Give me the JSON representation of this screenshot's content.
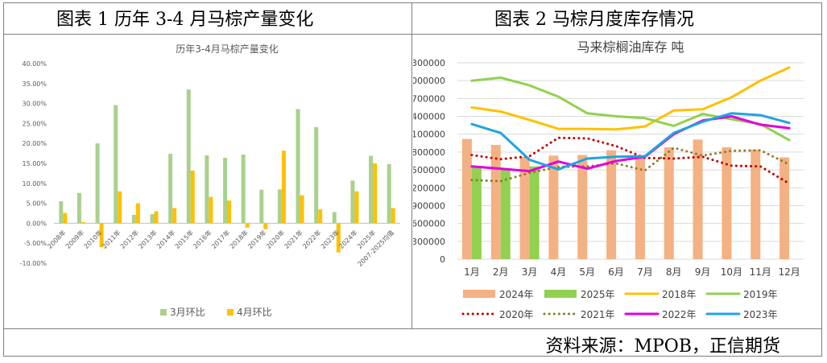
{
  "captions": {
    "left": "图表 1 历年 3-4 月马棕产量变化",
    "right": "图表 2   马棕月度库存情况"
  },
  "source": "资料来源：MPOB，正信期货",
  "chart_data": [
    {
      "type": "bar",
      "title": "历年3-4月马棕产量变化",
      "categories": [
        "2008年",
        "2009年",
        "2010年",
        "2011年",
        "2012年",
        "2013年",
        "2014年",
        "2015年",
        "2016年",
        "2017年",
        "2018年",
        "2019年",
        "2020年",
        "2021年",
        "2022年",
        "2023年",
        "2024年",
        "2025年",
        "2007-2025均值"
      ],
      "ylim": [
        -10,
        40
      ],
      "yticks": [
        "-10.00%",
        "-5.00%",
        "0.00%",
        "5.00%",
        "10.00%",
        "15.00%",
        "20.00%",
        "25.00%",
        "30.00%",
        "35.00%",
        "40.00%"
      ],
      "series": [
        {
          "name": "3月环比",
          "color": "#a9d18e",
          "values": [
            5.5,
            7.6,
            20.0,
            29.6,
            2.1,
            2.3,
            17.4,
            33.5,
            17.0,
            16.4,
            17.2,
            8.4,
            8.5,
            28.6,
            24.1,
            2.8,
            10.7,
            16.9,
            14.8
          ]
        },
        {
          "name": "4月环比",
          "color": "#ffc000",
          "values": [
            2.6,
            0.3,
            -6.0,
            8.0,
            5.0,
            3.0,
            3.8,
            13.2,
            6.6,
            5.7,
            -1.1,
            -1.5,
            18.2,
            7.0,
            3.5,
            -7.3,
            8.0,
            15.0,
            3.8
          ]
        }
      ],
      "grid": false,
      "legend": "bottom"
    },
    {
      "type": "bar+line",
      "title": "马来棕榈油库存    吨",
      "categories": [
        "1月",
        "2月",
        "3月",
        "4月",
        "5月",
        "6月",
        "7月",
        "8月",
        "9月",
        "10月",
        "11月",
        "12月"
      ],
      "ylim": [
        0,
        3300000
      ],
      "yticks": [
        "0",
        "300000",
        "600000",
        "900000",
        "1200000",
        "1500000",
        "1800000",
        "2100000",
        "2400000",
        "2700000",
        "3000000",
        "3300000"
      ],
      "grid": true,
      "legend": "bottom",
      "bar_series": [
        {
          "name": "2024年",
          "color": "#f4b183",
          "values": [
            2020000,
            1920000,
            1720000,
            1740000,
            1750000,
            1830000,
            1730000,
            1880000,
            2010000,
            1880000,
            1840000,
            1710000
          ]
        },
        {
          "name": "2025年",
          "color": "#92d050",
          "values": [
            1560000,
            1510000,
            1560000,
            null,
            null,
            null,
            null,
            null,
            null,
            null,
            null,
            null
          ]
        }
      ],
      "line_series": [
        {
          "name": "2018年",
          "color": "#ffc000",
          "style": "solid",
          "values": [
            2550000,
            2480000,
            2340000,
            2190000,
            2190000,
            2180000,
            2230000,
            2500000,
            2520000,
            2720000,
            3000000,
            3220000
          ]
        },
        {
          "name": "2019年",
          "color": "#92d050",
          "style": "solid",
          "values": [
            3000000,
            3050000,
            2920000,
            2730000,
            2450000,
            2400000,
            2370000,
            2240000,
            2440000,
            2350000,
            2270000,
            2000000
          ]
        },
        {
          "name": "2020年",
          "color": "#c00000",
          "style": "dot",
          "values": [
            1750000,
            1680000,
            1730000,
            2040000,
            2030000,
            1900000,
            1700000,
            1690000,
            1720000,
            1570000,
            1560000,
            1270000
          ]
        },
        {
          "name": "2021年",
          "color": "#8d7f28",
          "style": "dot",
          "values": [
            1330000,
            1310000,
            1450000,
            1550000,
            1560000,
            1610000,
            1490000,
            1870000,
            1740000,
            1820000,
            1830000,
            1590000
          ]
        },
        {
          "name": "2022年",
          "color": "#e000e0",
          "style": "solid",
          "values": [
            1560000,
            1520000,
            1480000,
            1640000,
            1520000,
            1650000,
            1720000,
            2100000,
            2330000,
            2400000,
            2260000,
            2200000
          ]
        },
        {
          "name": "2023年",
          "color": "#1fa4e0",
          "style": "solid",
          "values": [
            2270000,
            2120000,
            1670000,
            1510000,
            1690000,
            1720000,
            1730000,
            2120000,
            2310000,
            2450000,
            2420000,
            2290000
          ]
        }
      ]
    }
  ]
}
